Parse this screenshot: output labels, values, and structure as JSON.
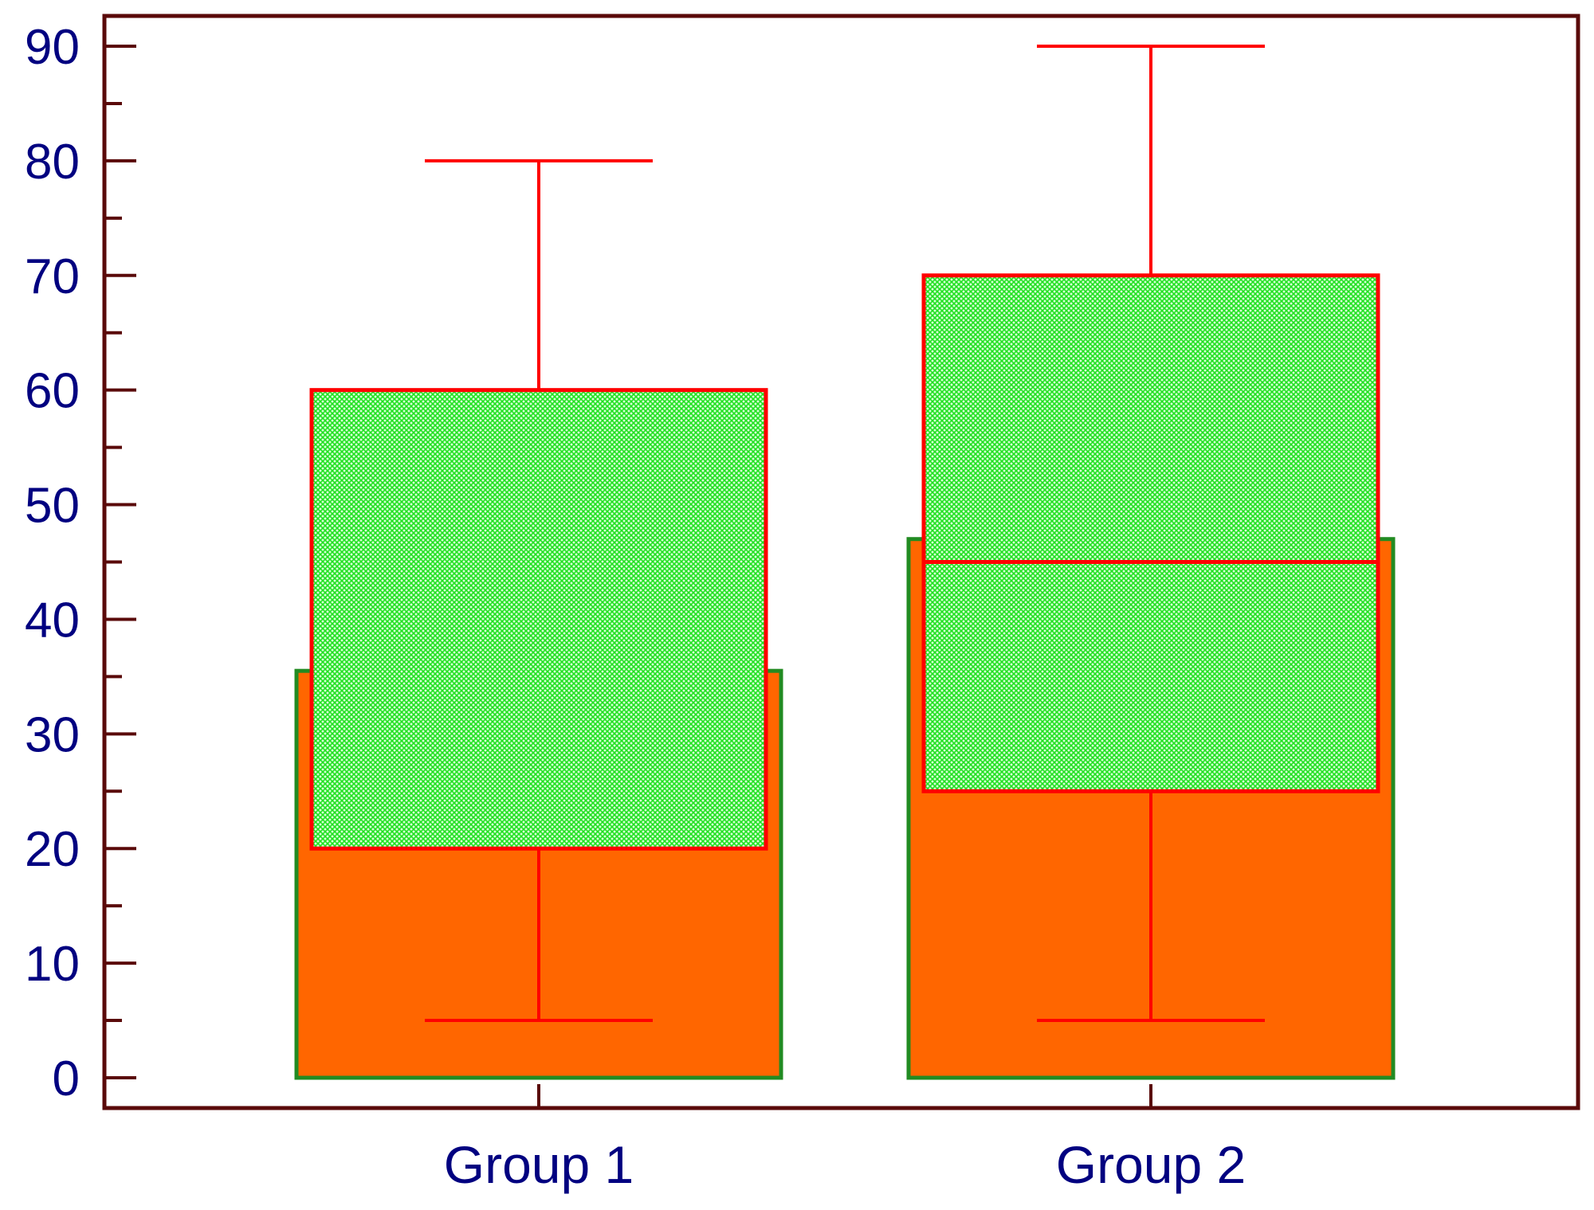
{
  "chart_data": {
    "type": "bar",
    "categories": [
      "Group 1",
      "Group 2"
    ],
    "series": [
      {
        "values": [
          35.5,
          47
        ]
      }
    ],
    "boxes": [
      {
        "category": "Group 1",
        "whisker_low": 5,
        "q1": 20,
        "median": null,
        "q3": 60,
        "whisker_high": 80
      },
      {
        "category": "Group 2",
        "whisker_low": 5,
        "q1": 25,
        "median": 45,
        "q3": 70,
        "whisker_high": 90
      }
    ],
    "title": "",
    "xlabel": "",
    "ylabel": "",
    "ylim": [
      0,
      90
    ],
    "yticks": [
      "0",
      "10",
      "20",
      "30",
      "40",
      "50",
      "60",
      "70",
      "80",
      "90"
    ],
    "grid": false,
    "legend": "none",
    "colors": {
      "bar_fill": "#ff6600",
      "bar_stroke": "#228b22",
      "box_fill": "#33ff33",
      "box_stroke": "#ff0000",
      "whisker": "#ff0000",
      "axis": "#5a0a0a",
      "tick_text": "#000080"
    }
  }
}
